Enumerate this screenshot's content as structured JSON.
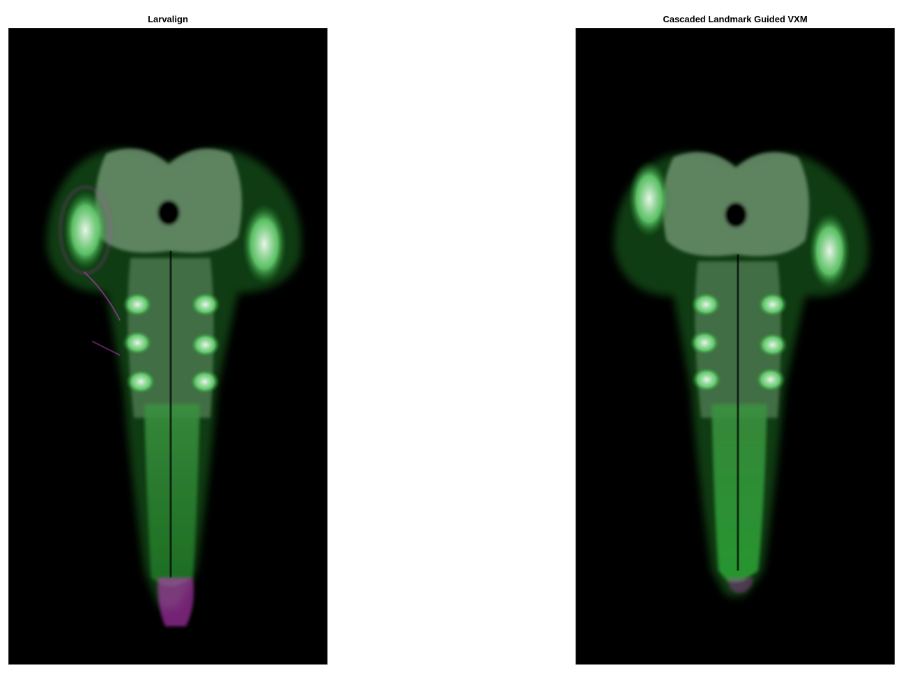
{
  "panels": [
    {
      "title": "Larvalign",
      "image_subject": "zebrafish-larva-brain-overlay-magenta-green"
    },
    {
      "title": "Cascaded Landmark Guided VXM",
      "image_subject": "zebrafish-larva-brain-overlay-magenta-green"
    }
  ],
  "colors": {
    "background": "#000000",
    "channel_green": "#2fd13a",
    "channel_magenta": "#c23bc2",
    "overlap_white": "#e9f5e9"
  }
}
